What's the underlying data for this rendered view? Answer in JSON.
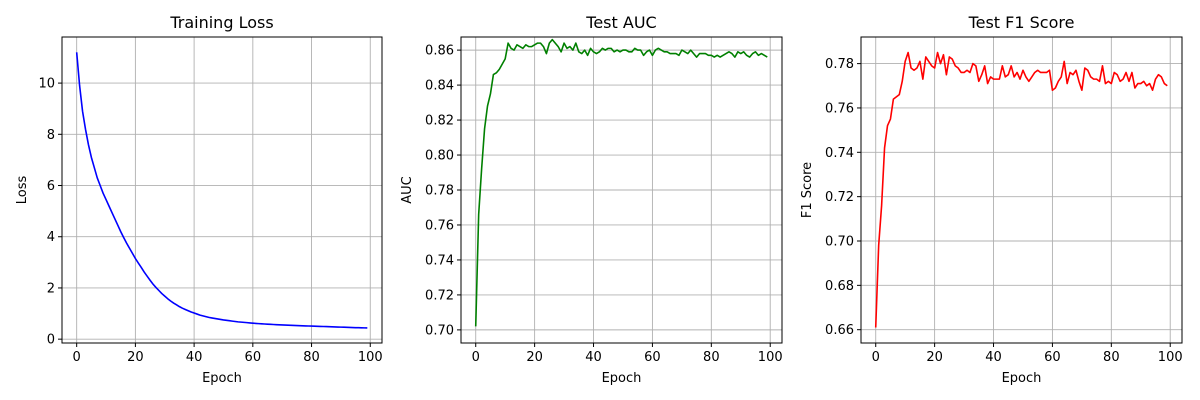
{
  "chart_data": [
    {
      "type": "line",
      "title": "Training Loss",
      "xlabel": "Epoch",
      "ylabel": "Loss",
      "xlim": [
        -5,
        104
      ],
      "ylim": [
        -0.15,
        11.8
      ],
      "xticks": [
        0,
        20,
        40,
        60,
        80,
        100
      ],
      "yticks": [
        0,
        2,
        4,
        6,
        8,
        10
      ],
      "ytick_labels": [
        "0",
        "2",
        "4",
        "6",
        "8",
        "10"
      ],
      "grid": true,
      "color": "#0000ff",
      "series": [
        {
          "x": [
            0,
            1,
            2,
            3,
            4,
            5,
            6,
            7,
            8,
            9,
            10,
            11,
            12,
            13,
            14,
            15,
            16,
            17,
            18,
            19,
            20,
            21,
            22,
            23,
            24,
            25,
            26,
            27,
            28,
            29,
            30,
            31,
            32,
            33,
            34,
            35,
            36,
            37,
            38,
            39,
            40,
            41,
            42,
            43,
            44,
            45,
            46,
            47,
            48,
            49,
            50,
            51,
            52,
            53,
            54,
            55,
            56,
            57,
            58,
            59,
            60,
            61,
            62,
            63,
            64,
            65,
            66,
            67,
            68,
            69,
            70,
            71,
            72,
            73,
            74,
            75,
            76,
            77,
            78,
            79,
            80,
            81,
            82,
            83,
            84,
            85,
            86,
            87,
            88,
            89,
            90,
            91,
            92,
            93,
            94,
            95,
            96,
            97,
            98,
            99
          ],
          "values": [
            11.2,
            9.9,
            8.9,
            8.2,
            7.6,
            7.1,
            6.7,
            6.3,
            6.0,
            5.7,
            5.45,
            5.2,
            4.95,
            4.7,
            4.45,
            4.2,
            3.97,
            3.75,
            3.55,
            3.35,
            3.15,
            2.97,
            2.8,
            2.62,
            2.46,
            2.3,
            2.15,
            2.02,
            1.9,
            1.78,
            1.68,
            1.58,
            1.49,
            1.41,
            1.34,
            1.27,
            1.21,
            1.16,
            1.11,
            1.06,
            1.02,
            0.98,
            0.94,
            0.91,
            0.88,
            0.85,
            0.83,
            0.81,
            0.79,
            0.77,
            0.75,
            0.735,
            0.72,
            0.705,
            0.69,
            0.675,
            0.665,
            0.655,
            0.645,
            0.635,
            0.625,
            0.615,
            0.607,
            0.599,
            0.592,
            0.585,
            0.578,
            0.572,
            0.566,
            0.56,
            0.555,
            0.55,
            0.545,
            0.54,
            0.535,
            0.53,
            0.526,
            0.522,
            0.518,
            0.514,
            0.51,
            0.506,
            0.502,
            0.498,
            0.494,
            0.49,
            0.486,
            0.482,
            0.478,
            0.474,
            0.47,
            0.466,
            0.462,
            0.458,
            0.454,
            0.45,
            0.447,
            0.444,
            0.441,
            0.438
          ]
        }
      ]
    },
    {
      "type": "line",
      "title": "Test AUC",
      "xlabel": "Epoch",
      "ylabel": "AUC",
      "xlim": [
        -5,
        104
      ],
      "ylim": [
        0.6925,
        0.8675
      ],
      "xticks": [
        0,
        20,
        40,
        60,
        80,
        100
      ],
      "yticks": [
        0.7,
        0.72,
        0.74,
        0.76,
        0.78,
        0.8,
        0.82,
        0.84,
        0.86
      ],
      "ytick_labels": [
        "0.70",
        "0.72",
        "0.74",
        "0.76",
        "0.78",
        "0.80",
        "0.82",
        "0.84",
        "0.86"
      ],
      "grid": true,
      "color": "#008000",
      "series": [
        {
          "x": [
            0,
            1,
            2,
            3,
            4,
            5,
            6,
            7,
            8,
            9,
            10,
            11,
            12,
            13,
            14,
            15,
            16,
            17,
            18,
            19,
            20,
            21,
            22,
            23,
            24,
            25,
            26,
            27,
            28,
            29,
            30,
            31,
            32,
            33,
            34,
            35,
            36,
            37,
            38,
            39,
            40,
            41,
            42,
            43,
            44,
            45,
            46,
            47,
            48,
            49,
            50,
            51,
            52,
            53,
            54,
            55,
            56,
            57,
            58,
            59,
            60,
            61,
            62,
            63,
            64,
            65,
            66,
            67,
            68,
            69,
            70,
            71,
            72,
            73,
            74,
            75,
            76,
            77,
            78,
            79,
            80,
            81,
            82,
            83,
            84,
            85,
            86,
            87,
            88,
            89,
            90,
            91,
            92,
            93,
            94,
            95,
            96,
            97,
            98,
            99
          ],
          "values": [
            0.702,
            0.766,
            0.792,
            0.815,
            0.828,
            0.835,
            0.846,
            0.847,
            0.849,
            0.852,
            0.855,
            0.864,
            0.861,
            0.86,
            0.863,
            0.862,
            0.861,
            0.863,
            0.862,
            0.862,
            0.863,
            0.864,
            0.864,
            0.862,
            0.858,
            0.864,
            0.866,
            0.864,
            0.862,
            0.859,
            0.864,
            0.861,
            0.862,
            0.86,
            0.864,
            0.859,
            0.858,
            0.86,
            0.857,
            0.861,
            0.859,
            0.858,
            0.859,
            0.861,
            0.86,
            0.861,
            0.861,
            0.859,
            0.86,
            0.859,
            0.86,
            0.86,
            0.859,
            0.859,
            0.861,
            0.86,
            0.86,
            0.857,
            0.859,
            0.86,
            0.857,
            0.86,
            0.861,
            0.86,
            0.859,
            0.859,
            0.858,
            0.858,
            0.858,
            0.857,
            0.86,
            0.859,
            0.858,
            0.86,
            0.858,
            0.856,
            0.858,
            0.858,
            0.858,
            0.857,
            0.857,
            0.856,
            0.857,
            0.856,
            0.857,
            0.858,
            0.859,
            0.858,
            0.856,
            0.859,
            0.858,
            0.859,
            0.857,
            0.856,
            0.858,
            0.859,
            0.857,
            0.858,
            0.857,
            0.856
          ]
        }
      ]
    },
    {
      "type": "line",
      "title": "Test F1 Score",
      "xlabel": "Epoch",
      "ylabel": "F1 Score",
      "xlim": [
        -5,
        104
      ],
      "ylim": [
        0.654,
        0.792
      ],
      "xticks": [
        0,
        20,
        40,
        60,
        80,
        100
      ],
      "yticks": [
        0.66,
        0.68,
        0.7,
        0.72,
        0.74,
        0.76,
        0.78
      ],
      "ytick_labels": [
        "0.66",
        "0.68",
        "0.70",
        "0.72",
        "0.74",
        "0.76",
        "0.78"
      ],
      "grid": true,
      "color": "#ff0000",
      "series": [
        {
          "x": [
            0,
            1,
            2,
            3,
            4,
            5,
            6,
            7,
            8,
            9,
            10,
            11,
            12,
            13,
            14,
            15,
            16,
            17,
            18,
            19,
            20,
            21,
            22,
            23,
            24,
            25,
            26,
            27,
            28,
            29,
            30,
            31,
            32,
            33,
            34,
            35,
            36,
            37,
            38,
            39,
            40,
            41,
            42,
            43,
            44,
            45,
            46,
            47,
            48,
            49,
            50,
            51,
            52,
            53,
            54,
            55,
            56,
            57,
            58,
            59,
            60,
            61,
            62,
            63,
            64,
            65,
            66,
            67,
            68,
            69,
            70,
            71,
            72,
            73,
            74,
            75,
            76,
            77,
            78,
            79,
            80,
            81,
            82,
            83,
            84,
            85,
            86,
            87,
            88,
            89,
            90,
            91,
            92,
            93,
            94,
            95,
            96,
            97,
            98,
            99
          ],
          "values": [
            0.661,
            0.698,
            0.716,
            0.742,
            0.752,
            0.755,
            0.764,
            0.765,
            0.766,
            0.772,
            0.781,
            0.785,
            0.778,
            0.777,
            0.778,
            0.781,
            0.773,
            0.783,
            0.781,
            0.779,
            0.778,
            0.785,
            0.78,
            0.784,
            0.775,
            0.783,
            0.782,
            0.779,
            0.778,
            0.776,
            0.776,
            0.777,
            0.776,
            0.78,
            0.779,
            0.772,
            0.775,
            0.779,
            0.771,
            0.774,
            0.773,
            0.773,
            0.773,
            0.779,
            0.774,
            0.775,
            0.779,
            0.774,
            0.776,
            0.773,
            0.777,
            0.774,
            0.772,
            0.774,
            0.776,
            0.777,
            0.776,
            0.776,
            0.776,
            0.777,
            0.768,
            0.769,
            0.772,
            0.774,
            0.781,
            0.771,
            0.776,
            0.775,
            0.777,
            0.772,
            0.768,
            0.778,
            0.777,
            0.774,
            0.773,
            0.773,
            0.772,
            0.779,
            0.771,
            0.772,
            0.771,
            0.776,
            0.775,
            0.772,
            0.773,
            0.776,
            0.772,
            0.776,
            0.769,
            0.771,
            0.771,
            0.772,
            0.77,
            0.771,
            0.768,
            0.773,
            0.775,
            0.774,
            0.771,
            0.77
          ]
        }
      ]
    }
  ]
}
